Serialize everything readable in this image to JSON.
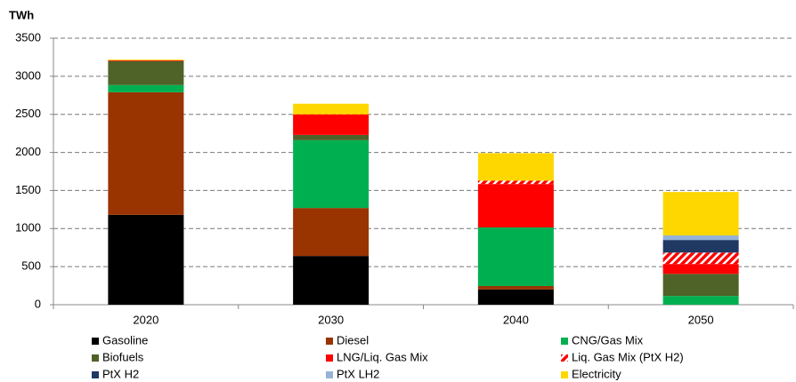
{
  "chart_data": {
    "type": "stacked_bar",
    "y_label": "TWh",
    "categories": [
      "2020",
      "2030",
      "2040",
      "2050"
    ],
    "series": [
      {
        "name": "Gasoline",
        "color": "#000000",
        "values": [
          1180,
          640,
          200,
          0
        ]
      },
      {
        "name": "Diesel",
        "color": "#993300",
        "values": [
          1610,
          630,
          45,
          0
        ]
      },
      {
        "name": "CNG/Gas Mix",
        "color": "#00b050",
        "values": [
          95,
          890,
          770,
          115
        ]
      },
      {
        "name": "Biofuels",
        "color": "#4f6228",
        "values": [
          315,
          70,
          0,
          290
        ]
      },
      {
        "name": "LNG/Liq. Gas Mix",
        "color": "#ff0000",
        "values": [
          10,
          270,
          570,
          130
        ]
      },
      {
        "name": "Liq. Gas Mix (PtX H2)",
        "color": "#ff0000",
        "hatch": true,
        "values": [
          0,
          0,
          45,
          150
        ]
      },
      {
        "name": "PtX H2",
        "color": "#1f3864",
        "values": [
          0,
          0,
          0,
          165
        ]
      },
      {
        "name": "PtX LH2",
        "color": "#95b3d7",
        "values": [
          0,
          0,
          0,
          60
        ]
      },
      {
        "name": "Electricity",
        "color": "#ffd700",
        "values": [
          10,
          140,
          360,
          570
        ]
      }
    ],
    "ylim": [
      0,
      3500
    ],
    "yticks": [
      0,
      500,
      1000,
      1500,
      2000,
      2500,
      3000,
      3500
    ],
    "grid": true
  }
}
